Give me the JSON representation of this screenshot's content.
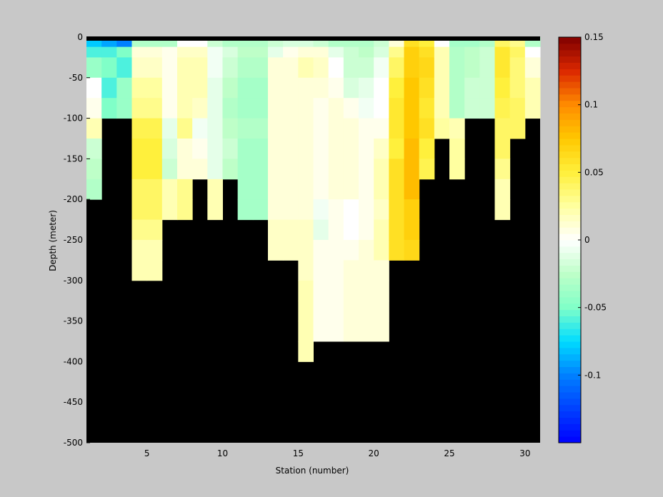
{
  "chart_data": {
    "type": "heatmap",
    "title": "",
    "xlabel": "Station (number)",
    "ylabel": "Depth (meter)",
    "xlim": [
      1,
      31
    ],
    "ylim": [
      -500,
      0
    ],
    "x_ticks": [
      5,
      10,
      15,
      20,
      25,
      30
    ],
    "y_ticks": [
      0,
      -50,
      -100,
      -150,
      -200,
      -250,
      -300,
      -350,
      -400,
      -450,
      -500
    ],
    "colorbar": {
      "clim": [
        -0.15,
        0.15
      ],
      "ticks": [
        0.15,
        0.1,
        0.05,
        0,
        -0.05,
        -0.1
      ],
      "colormap": "jet-white-centered"
    },
    "mask_color": "#000000",
    "background": "#c8c8c8",
    "depth_levels": [
      0,
      -12,
      -25,
      -50,
      -75,
      -100,
      -125,
      -150,
      -175,
      -200,
      -225,
      -250,
      -275,
      -300,
      -325,
      -350,
      -375,
      -400
    ],
    "stations": [
      {
        "x": 1,
        "max_depth": 200,
        "values": [
          -0.08,
          -0.06,
          -0.04,
          0.0,
          0.005,
          0.02,
          -0.02,
          -0.025,
          -0.03
        ]
      },
      {
        "x": 2,
        "max_depth": 100,
        "values": [
          -0.09,
          -0.06,
          -0.05,
          -0.06,
          -0.05
        ]
      },
      {
        "x": 3,
        "max_depth": 100,
        "values": [
          -0.1,
          -0.05,
          -0.06,
          -0.04,
          -0.04
        ]
      },
      {
        "x": 4,
        "max_depth": 300,
        "values": [
          -0.03,
          0.01,
          0.015,
          0.025,
          0.03,
          0.045,
          0.05,
          0.05,
          0.04,
          0.04,
          0.03,
          0.02,
          0.02
        ]
      },
      {
        "x": 5,
        "max_depth": 300,
        "values": [
          -0.03,
          0.01,
          0.015,
          0.025,
          0.03,
          0.045,
          0.05,
          0.05,
          0.04,
          0.04,
          0.03,
          0.02,
          0.02
        ]
      },
      {
        "x": 6,
        "max_depth": 250,
        "values": [
          -0.03,
          0.005,
          0.005,
          0.005,
          0.005,
          -0.01,
          -0.015,
          -0.02,
          0.02,
          0.02
        ]
      },
      {
        "x": 7,
        "max_depth": 250,
        "values": [
          0.0,
          0.015,
          0.02,
          0.02,
          0.02,
          0.03,
          0.01,
          0.01,
          0.03,
          0.03
        ]
      },
      {
        "x": 8,
        "max_depth": 200,
        "values": [
          0.0,
          0.015,
          0.02,
          0.02,
          0.015,
          -0.005,
          0.005,
          0.01
        ]
      },
      {
        "x": 9,
        "max_depth": 250,
        "values": [
          -0.02,
          -0.005,
          -0.005,
          -0.01,
          -0.01,
          -0.01,
          -0.01,
          -0.01,
          0.02,
          0.02
        ]
      },
      {
        "x": 10,
        "max_depth": 200,
        "values": [
          -0.03,
          -0.015,
          -0.02,
          -0.025,
          -0.03,
          -0.025,
          -0.02,
          -0.025
        ]
      },
      {
        "x": 11,
        "max_depth": 250,
        "values": [
          -0.03,
          -0.025,
          -0.03,
          -0.035,
          -0.035,
          -0.03,
          -0.035,
          -0.035,
          -0.035,
          -0.035
        ]
      },
      {
        "x": 12,
        "max_depth": 250,
        "values": [
          -0.03,
          -0.025,
          -0.03,
          -0.035,
          -0.035,
          -0.03,
          -0.035,
          -0.035,
          -0.035,
          -0.035
        ]
      },
      {
        "x": 13,
        "max_depth": 300,
        "values": [
          -0.02,
          -0.01,
          0.01,
          0.01,
          0.01,
          0.01,
          0.01,
          0.01,
          0.01,
          0.01,
          0.015,
          0.015
        ]
      },
      {
        "x": 14,
        "max_depth": 300,
        "values": [
          -0.015,
          0.005,
          0.01,
          0.01,
          0.01,
          0.01,
          0.01,
          0.01,
          0.01,
          0.01,
          0.015,
          0.015
        ]
      },
      {
        "x": 15,
        "max_depth": 400,
        "values": [
          -0.015,
          0.01,
          0.02,
          0.01,
          0.01,
          0.01,
          0.01,
          0.01,
          0.01,
          0.01,
          0.015,
          0.015,
          0.015,
          0.02,
          0.02,
          0.02,
          0.02
        ]
      },
      {
        "x": 16,
        "max_depth": 400,
        "values": [
          -0.02,
          0.01,
          0.015,
          0.01,
          0.005,
          0.005,
          0.005,
          0.005,
          0.005,
          -0.005,
          -0.01,
          0.005,
          0.005,
          0.005,
          0.005,
          0.005
        ]
      },
      {
        "x": 17,
        "max_depth": 400,
        "values": [
          -0.03,
          -0.01,
          0.0,
          0.005,
          0.01,
          0.01,
          0.01,
          0.01,
          0.01,
          0.005,
          0.005,
          0.005,
          0.005,
          0.005,
          0.005,
          0.005
        ]
      },
      {
        "x": 18,
        "max_depth": 400,
        "values": [
          -0.03,
          -0.02,
          -0.02,
          -0.015,
          0.005,
          0.01,
          0.01,
          0.01,
          0.01,
          0.0,
          0.0,
          0.005,
          0.01,
          0.01,
          0.01,
          0.01
        ]
      },
      {
        "x": 19,
        "max_depth": 400,
        "values": [
          -0.03,
          -0.025,
          -0.02,
          -0.01,
          -0.005,
          0.005,
          0.005,
          0.005,
          0.005,
          0.005,
          0.005,
          0.01,
          0.01,
          0.01,
          0.01,
          0.01
        ]
      },
      {
        "x": 20,
        "max_depth": 400,
        "values": [
          -0.02,
          -0.015,
          -0.005,
          0.0,
          0.0,
          0.005,
          0.015,
          0.02,
          0.02,
          0.015,
          0.02,
          0.02,
          0.01,
          0.01,
          0.01,
          0.01
        ]
      },
      {
        "x": 21,
        "max_depth": 300,
        "values": [
          0.01,
          0.03,
          0.04,
          0.05,
          0.055,
          0.055,
          0.05,
          0.06,
          0.06,
          0.06,
          0.06,
          0.06
        ]
      },
      {
        "x": 22,
        "max_depth": 300,
        "values": [
          0.06,
          0.07,
          0.07,
          0.075,
          0.075,
          0.075,
          0.08,
          0.08,
          0.08,
          0.07,
          0.07,
          0.065
        ]
      },
      {
        "x": 23,
        "max_depth": 200,
        "values": [
          0.05,
          0.06,
          0.065,
          0.06,
          0.055,
          0.06,
          0.05,
          0.045
        ]
      },
      {
        "x": 24,
        "max_depth": 150,
        "values": [
          0.0,
          0.02,
          0.02,
          0.02,
          0.02,
          0.025
        ]
      },
      {
        "x": 25,
        "max_depth": 200,
        "values": [
          -0.035,
          -0.03,
          -0.03,
          -0.03,
          -0.03,
          0.02,
          0.025,
          0.025
        ]
      },
      {
        "x": 26,
        "max_depth": 125,
        "values": [
          -0.035,
          -0.025,
          -0.025,
          -0.02,
          -0.02
        ]
      },
      {
        "x": 27,
        "max_depth": 125,
        "values": [
          -0.03,
          -0.02,
          -0.02,
          -0.02,
          -0.02
        ]
      },
      {
        "x": 28,
        "max_depth": 250,
        "values": [
          0.04,
          0.055,
          0.055,
          0.05,
          0.045,
          0.04,
          0.04,
          0.03,
          0.02,
          0.02
        ]
      },
      {
        "x": 29,
        "max_depth": 150,
        "values": [
          0.03,
          0.04,
          0.035,
          0.035,
          0.04,
          0.04
        ]
      },
      {
        "x": 30,
        "max_depth": 125,
        "values": [
          -0.03,
          0.0,
          0.01,
          0.02,
          0.02
        ]
      }
    ]
  }
}
